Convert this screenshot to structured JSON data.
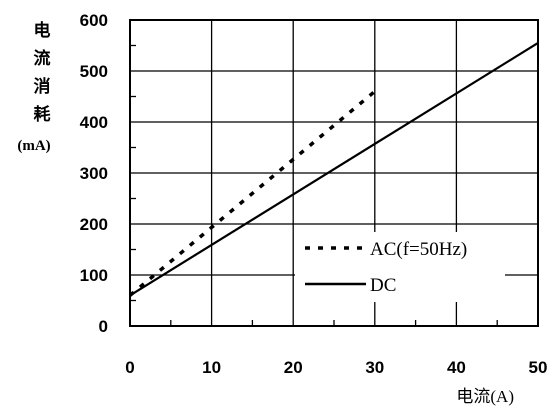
{
  "chart_data": {
    "type": "line",
    "xlabel": "电流(A)",
    "ylabel_chars": [
      "电",
      "流",
      "消",
      "耗"
    ],
    "ylabel_unit": "(mA)",
    "xlim": [
      0,
      50
    ],
    "ylim": [
      0,
      600
    ],
    "xticks": [
      "0",
      "10",
      "20",
      "30",
      "40",
      "50"
    ],
    "yticks": [
      "0",
      "100",
      "200",
      "300",
      "400",
      "500",
      "600"
    ],
    "grid": true,
    "legend_position": "bottom-right",
    "series": [
      {
        "name": "AC(f=50Hz)",
        "style": "dashed",
        "x": [
          0,
          30
        ],
        "y": [
          60,
          460
        ]
      },
      {
        "name": "DC",
        "style": "solid",
        "x": [
          0,
          50
        ],
        "y": [
          60,
          555
        ]
      }
    ]
  },
  "colors": {
    "line": "#000000",
    "grid": "#000000",
    "background": "#ffffff"
  }
}
